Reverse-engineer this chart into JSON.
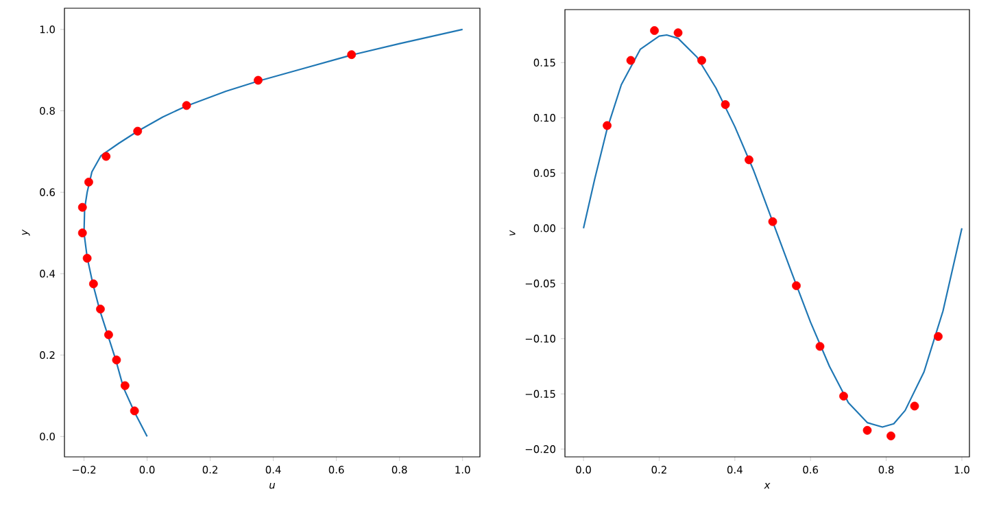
{
  "chart_data": [
    {
      "type": "line",
      "xlabel": "u",
      "ylabel": "y",
      "xlim": [
        -0.262,
        1.055
      ],
      "ylim": [
        -0.05,
        1.052
      ],
      "xticks": [
        {
          "value": -0.2,
          "label": "−0.2"
        },
        {
          "value": 0,
          "label": "0.0"
        },
        {
          "value": 0.2,
          "label": "0.2"
        },
        {
          "value": 0.4,
          "label": "0.4"
        },
        {
          "value": 0.6,
          "label": "0.6"
        },
        {
          "value": 0.8,
          "label": "0.8"
        },
        {
          "value": 1,
          "label": "1.0"
        }
      ],
      "yticks": [
        {
          "value": 0,
          "label": "0.0"
        },
        {
          "value": 0.2,
          "label": "0.2"
        },
        {
          "value": 0.4,
          "label": "0.4"
        },
        {
          "value": 0.6,
          "label": "0.6"
        },
        {
          "value": 0.8,
          "label": "0.8"
        },
        {
          "value": 1,
          "label": "1.0"
        }
      ],
      "series": [
        {
          "marker": "none",
          "color": "#1f77b4",
          "x": [
            0,
            -0.04,
            -0.075,
            -0.1,
            -0.125,
            -0.15,
            -0.172,
            -0.19,
            -0.2,
            -0.198,
            -0.19,
            -0.175,
            -0.146,
            -0.09,
            -0.03,
            0.05,
            0.125,
            0.25,
            0.352,
            0.5,
            0.648,
            0.8,
            1.0
          ],
          "values": [
            0,
            0.06,
            0.12,
            0.19,
            0.25,
            0.31,
            0.375,
            0.44,
            0.5,
            0.56,
            0.6,
            0.65,
            0.69,
            0.72,
            0.75,
            0.785,
            0.812,
            0.848,
            0.873,
            0.905,
            0.937,
            0.965,
            1.0
          ]
        },
        {
          "type": "scatter",
          "marker": "circle",
          "color": "#ff0000",
          "x": [
            -0.04,
            -0.07,
            -0.097,
            -0.122,
            -0.148,
            -0.17,
            -0.19,
            -0.205,
            -0.205,
            -0.185,
            -0.13,
            -0.03,
            0.125,
            0.352,
            0.648
          ],
          "values": [
            0.063,
            0.125,
            0.188,
            0.25,
            0.313,
            0.375,
            0.438,
            0.5,
            0.563,
            0.625,
            0.688,
            0.75,
            0.813,
            0.875,
            0.938
          ]
        }
      ]
    },
    {
      "type": "line",
      "xlabel": "x",
      "ylabel": "v",
      "xlim": [
        -0.049,
        1.02
      ],
      "ylim": [
        -0.207,
        0.198
      ],
      "xticks": [
        {
          "value": 0,
          "label": "0.0"
        },
        {
          "value": 0.2,
          "label": "0.2"
        },
        {
          "value": 0.4,
          "label": "0.4"
        },
        {
          "value": 0.6,
          "label": "0.6"
        },
        {
          "value": 0.8,
          "label": "0.8"
        },
        {
          "value": 1,
          "label": "1.0"
        }
      ],
      "yticks": [
        {
          "value": -0.2,
          "label": "−0.20"
        },
        {
          "value": -0.15,
          "label": "−0.15"
        },
        {
          "value": -0.1,
          "label": "−0.10"
        },
        {
          "value": -0.05,
          "label": "−0.05"
        },
        {
          "value": 0,
          "label": "0.00"
        },
        {
          "value": 0.05,
          "label": "0.05"
        },
        {
          "value": 0.1,
          "label": "0.10"
        },
        {
          "value": 0.15,
          "label": "0.15"
        }
      ],
      "series": [
        {
          "marker": "none",
          "color": "#1f77b4",
          "x": [
            0,
            0.03,
            0.0625,
            0.1,
            0.15,
            0.2,
            0.22,
            0.25,
            0.3,
            0.35,
            0.4,
            0.45,
            0.5,
            0.55,
            0.6,
            0.65,
            0.7,
            0.75,
            0.79,
            0.82,
            0.85,
            0.9,
            0.95,
            1.0
          ],
          "values": [
            0,
            0.045,
            0.09,
            0.13,
            0.162,
            0.174,
            0.175,
            0.172,
            0.155,
            0.127,
            0.092,
            0.052,
            0.006,
            -0.04,
            -0.085,
            -0.125,
            -0.158,
            -0.176,
            -0.18,
            -0.177,
            -0.165,
            -0.13,
            -0.075,
            0
          ]
        },
        {
          "type": "scatter",
          "marker": "circle",
          "color": "#ff0000",
          "x": [
            0.0625,
            0.125,
            0.1875,
            0.25,
            0.3125,
            0.375,
            0.4375,
            0.5,
            0.5625,
            0.625,
            0.6875,
            0.75,
            0.8125,
            0.875,
            0.9375
          ],
          "values": [
            0.093,
            0.152,
            0.179,
            0.177,
            0.152,
            0.112,
            0.062,
            0.006,
            -0.052,
            -0.107,
            -0.152,
            -0.183,
            -0.188,
            -0.161,
            -0.098
          ]
        }
      ]
    }
  ]
}
